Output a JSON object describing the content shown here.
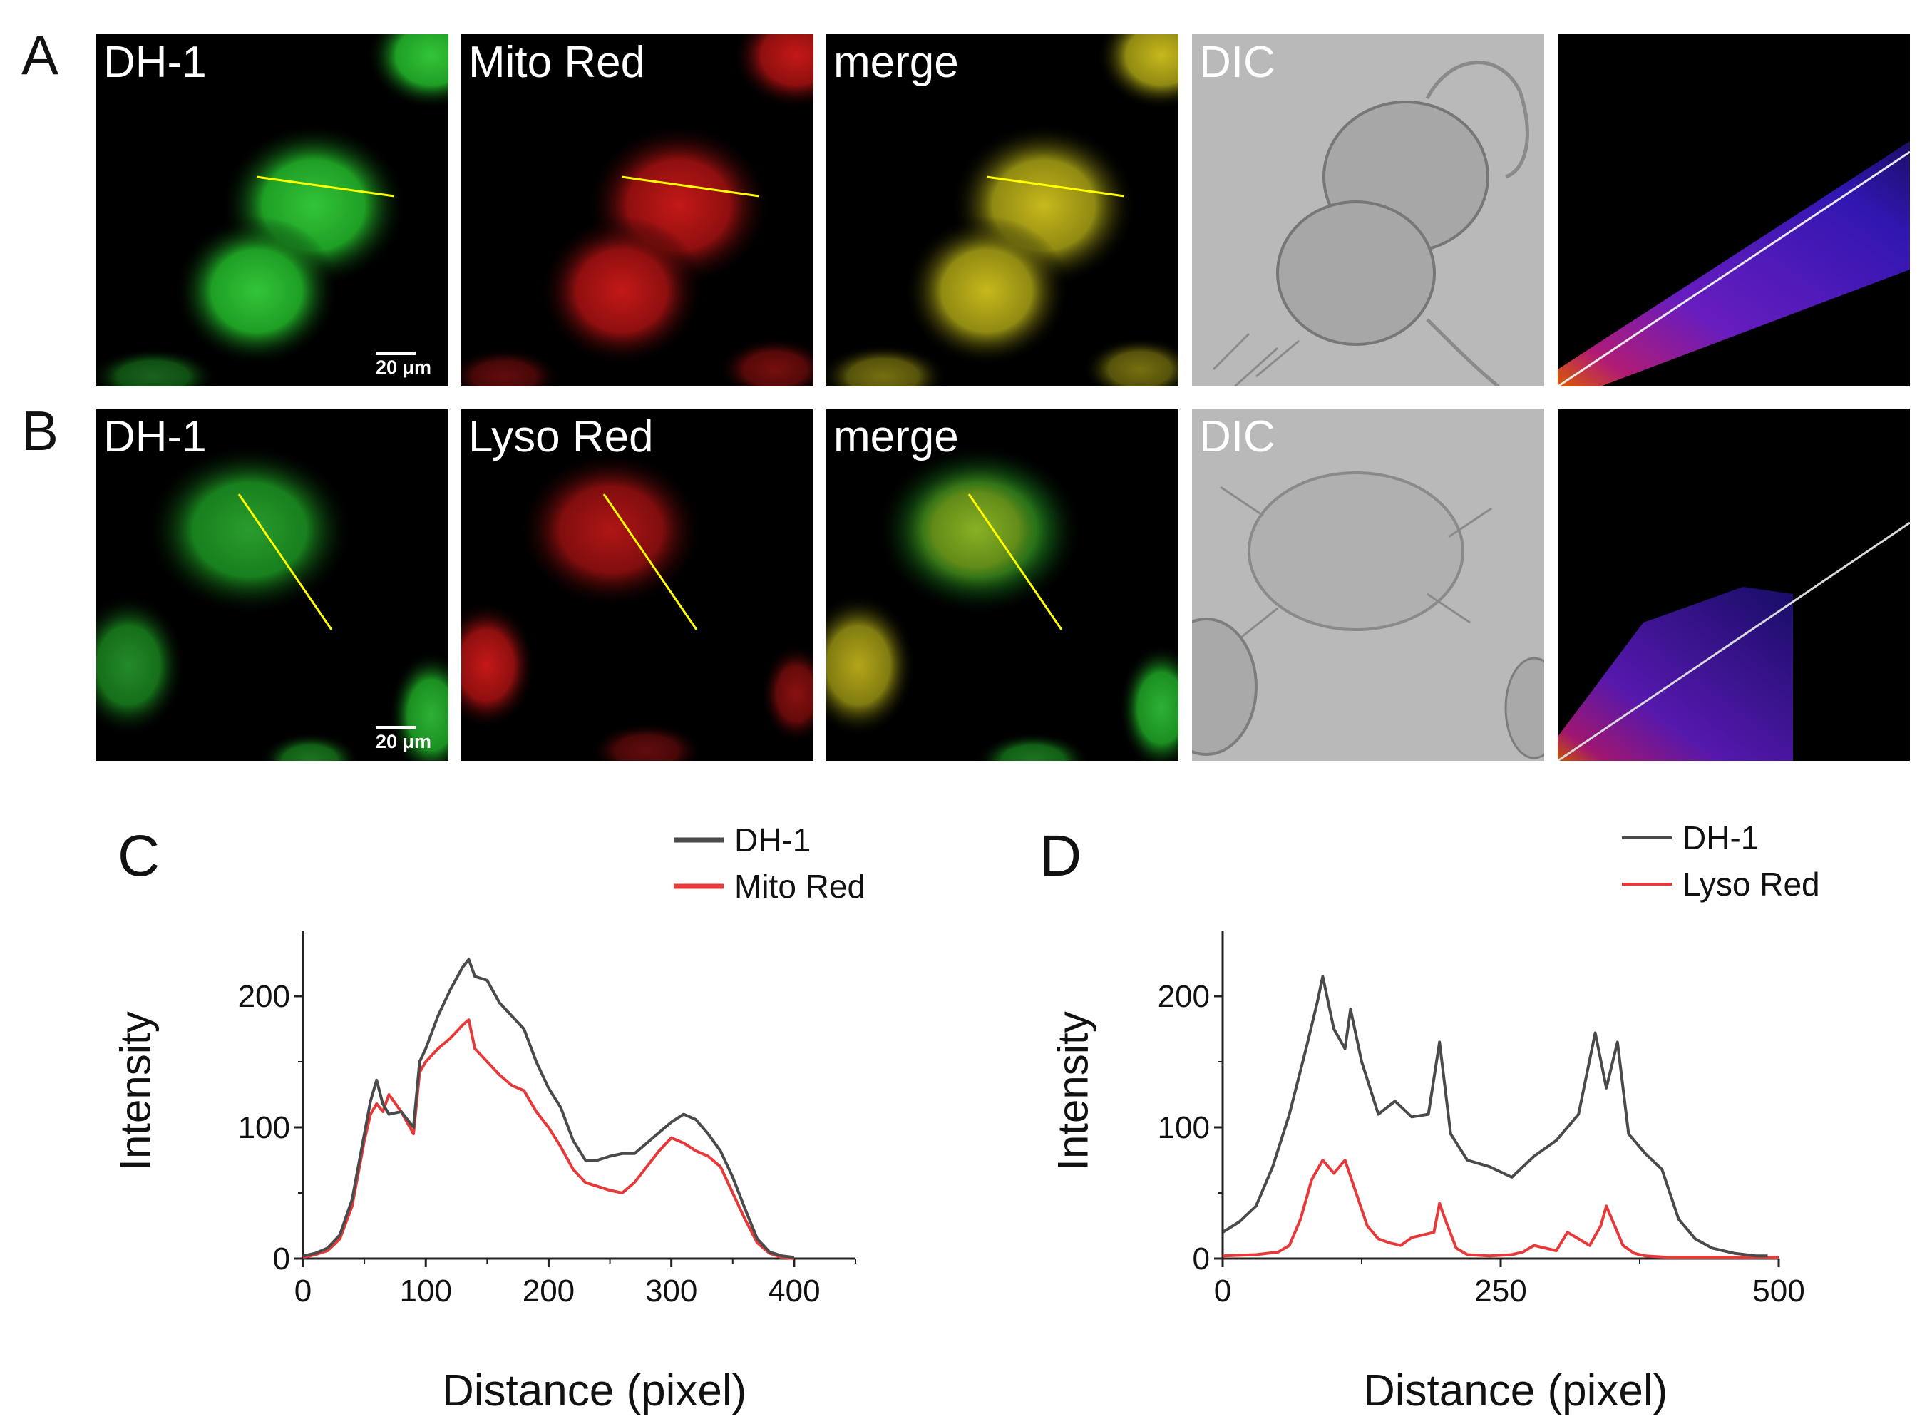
{
  "panels": {
    "a": {
      "letter": "A",
      "tiles": [
        {
          "label": "DH-1",
          "scale_bar": "20 μm"
        },
        {
          "label": "Mito Red"
        },
        {
          "label": "merge"
        },
        {
          "label": "DIC"
        },
        {
          "label": ""
        }
      ]
    },
    "b": {
      "letter": "B",
      "tiles": [
        {
          "label": "DH-1",
          "scale_bar": "20 μm"
        },
        {
          "label": "Lyso Red"
        },
        {
          "label": "merge"
        },
        {
          "label": "DIC"
        },
        {
          "label": ""
        }
      ]
    }
  },
  "colors": {
    "green_channel": "#1fbf1f",
    "red_channel": "#e01818",
    "merge": "#c8c020",
    "line_profile": "#ffff00",
    "dh1_series": "#4a4a4a",
    "red_series": "#e8393a"
  },
  "chart_data": [
    {
      "panel_letter": "C",
      "type": "line",
      "xlabel": "Distance (pixel)",
      "ylabel": "Intensity",
      "xlim": [
        0,
        450
      ],
      "ylim": [
        0,
        250
      ],
      "xticks": [
        "0",
        "100",
        "200",
        "300",
        "400"
      ],
      "yticks": [
        "0",
        "100",
        "200"
      ],
      "legend": "top-right",
      "series": [
        {
          "name": "DH-1",
          "color": "#4a4a4a",
          "x": [
            0,
            10,
            20,
            30,
            40,
            50,
            55,
            60,
            65,
            70,
            80,
            90,
            95,
            100,
            110,
            120,
            130,
            135,
            140,
            150,
            160,
            170,
            180,
            190,
            200,
            210,
            220,
            230,
            240,
            250,
            260,
            270,
            280,
            290,
            300,
            310,
            320,
            330,
            340,
            350,
            360,
            370,
            380,
            390,
            400
          ],
          "y": [
            2,
            4,
            8,
            18,
            45,
            95,
            120,
            136,
            118,
            110,
            112,
            100,
            150,
            160,
            185,
            205,
            222,
            228,
            215,
            212,
            195,
            185,
            175,
            150,
            130,
            115,
            90,
            75,
            75,
            78,
            80,
            80,
            88,
            96,
            104,
            110,
            106,
            95,
            82,
            62,
            38,
            15,
            5,
            2,
            1
          ]
        },
        {
          "name": "Mito Red",
          "color": "#e8393a",
          "x": [
            0,
            10,
            20,
            30,
            40,
            50,
            55,
            60,
            65,
            70,
            80,
            90,
            95,
            100,
            110,
            120,
            130,
            135,
            140,
            150,
            160,
            170,
            180,
            190,
            200,
            210,
            220,
            230,
            240,
            250,
            260,
            270,
            280,
            290,
            300,
            310,
            320,
            330,
            340,
            350,
            360,
            370,
            380,
            390,
            400
          ],
          "y": [
            1,
            3,
            6,
            15,
            40,
            90,
            110,
            118,
            112,
            125,
            112,
            95,
            142,
            150,
            160,
            168,
            178,
            182,
            160,
            150,
            140,
            132,
            128,
            112,
            100,
            85,
            68,
            58,
            55,
            52,
            50,
            58,
            70,
            82,
            92,
            88,
            82,
            78,
            70,
            50,
            30,
            12,
            4,
            1,
            0
          ]
        }
      ]
    },
    {
      "panel_letter": "D",
      "type": "line",
      "xlabel": "Distance (pixel)",
      "ylabel": "Intensity",
      "xlim": [
        0,
        500
      ],
      "ylim": [
        0,
        250
      ],
      "xticks": [
        "0",
        "250",
        "500"
      ],
      "yticks": [
        "0",
        "100",
        "200"
      ],
      "legend": "top-right",
      "series": [
        {
          "name": "DH-1",
          "color": "#4a4a4a",
          "x": [
            0,
            15,
            30,
            45,
            60,
            75,
            85,
            90,
            100,
            110,
            115,
            125,
            140,
            155,
            170,
            185,
            195,
            205,
            220,
            240,
            260,
            280,
            300,
            320,
            335,
            345,
            355,
            365,
            380,
            395,
            410,
            425,
            440,
            460,
            480,
            490
          ],
          "y": [
            20,
            28,
            40,
            70,
            110,
            160,
            195,
            215,
            175,
            160,
            190,
            150,
            110,
            120,
            108,
            110,
            165,
            95,
            75,
            70,
            62,
            78,
            90,
            110,
            172,
            130,
            165,
            95,
            80,
            68,
            30,
            15,
            8,
            4,
            2,
            2
          ]
        },
        {
          "name": "Lyso Red",
          "color": "#e8393a",
          "x": [
            0,
            30,
            50,
            60,
            70,
            80,
            90,
            100,
            110,
            120,
            130,
            140,
            150,
            160,
            170,
            180,
            190,
            195,
            200,
            210,
            220,
            240,
            260,
            270,
            280,
            290,
            300,
            310,
            320,
            330,
            340,
            345,
            350,
            360,
            370,
            380,
            400,
            500
          ],
          "y": [
            2,
            3,
            5,
            10,
            30,
            60,
            75,
            65,
            75,
            50,
            25,
            15,
            12,
            10,
            16,
            18,
            20,
            42,
            30,
            8,
            3,
            2,
            3,
            5,
            10,
            8,
            6,
            20,
            15,
            10,
            25,
            40,
            30,
            10,
            4,
            2,
            1,
            1
          ]
        }
      ]
    }
  ]
}
